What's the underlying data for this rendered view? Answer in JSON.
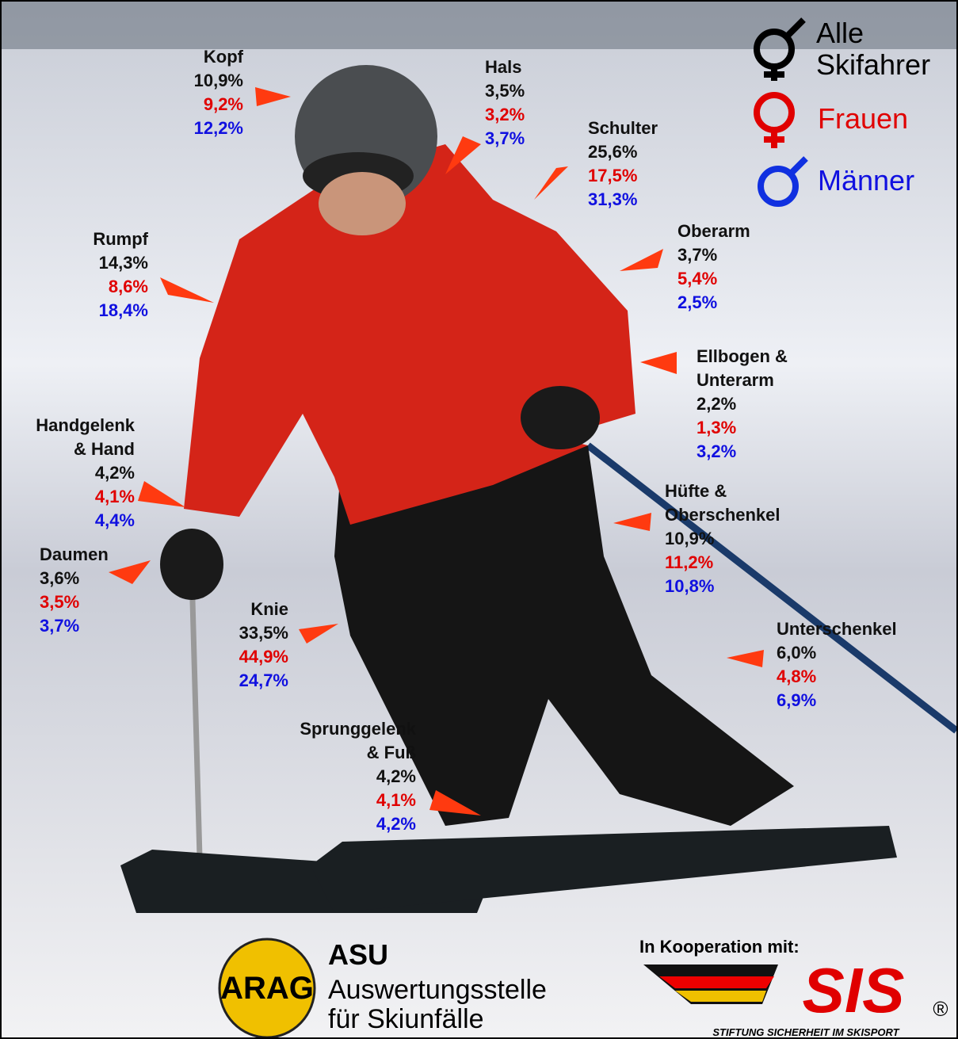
{
  "labels": [
    {
      "name": [
        "Kopf"
      ],
      "all": "10,9%",
      "women": "9,2%",
      "men": "12,2%"
    },
    {
      "name": [
        "Hals"
      ],
      "all": "3,5%",
      "women": "3,2%",
      "men": "3,7%"
    },
    {
      "name": [
        "Schulter"
      ],
      "all": "25,6%",
      "women": "17,5%",
      "men": "31,3%"
    },
    {
      "name": [
        "Oberarm"
      ],
      "all": "3,7%",
      "women": "5,4%",
      "men": "2,5%"
    },
    {
      "name": [
        "Ellbogen &",
        "Unterarm"
      ],
      "all": "2,2%",
      "women": "1,3%",
      "men": "3,2%"
    },
    {
      "name": [
        "Rumpf"
      ],
      "all": "14,3%",
      "women": "8,6%",
      "men": "18,4%"
    },
    {
      "name": [
        "Handgelenk",
        "& Hand"
      ],
      "all": "4,2%",
      "women": "4,1%",
      "men": "4,4%"
    },
    {
      "name": [
        "Daumen"
      ],
      "all": "3,6%",
      "women": "3,5%",
      "men": "3,7%"
    },
    {
      "name": [
        "Hüfte &",
        "Oberschenkel"
      ],
      "all": "10,9%",
      "women": "11,2%",
      "men": "10,8%"
    },
    {
      "name": [
        "Knie"
      ],
      "all": "33,5%",
      "women": "44,9%",
      "men": "24,7%"
    },
    {
      "name": [
        "Unterschenkel"
      ],
      "all": "6,0%",
      "women": "4,8%",
      "men": "6,9%"
    },
    {
      "name": [
        "Sprunggelenk",
        "& Fuß"
      ],
      "all": "4,2%",
      "women": "4,1%",
      "men": "4,2%"
    }
  ],
  "legend": {
    "all": [
      "Alle",
      "Skifahrer"
    ],
    "women": "Frauen",
    "men": "Männer"
  },
  "footer": {
    "logo": "ARAG",
    "org": "ASU",
    "org_line1": "Auswertungsstelle",
    "org_line2": "für Skiunfälle",
    "coop": "In Kooperation mit:",
    "sis": "SIS",
    "sis_sub": "STIFTUNG SICHERHEIT IM SKISPORT",
    "registered": "®"
  }
}
